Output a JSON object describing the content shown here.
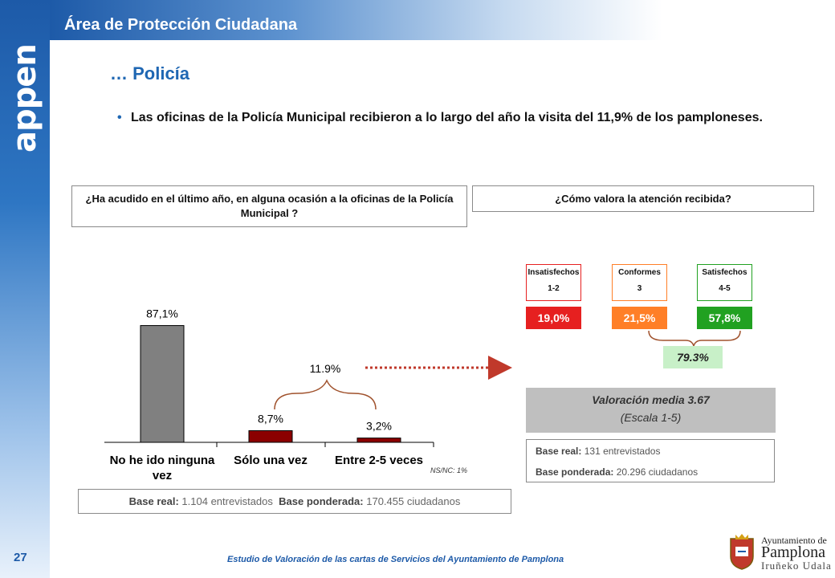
{
  "header": {
    "title": "Área de Protección Ciudadana",
    "brand": "appen"
  },
  "section_title": "… Policía",
  "bullet": "Las oficinas de la Policía Municipal recibieron a lo largo del año la visita del 11,9% de los pamploneses.",
  "question_left": "¿Ha acudido en el último año, en alguna ocasión a la oficinas de la Policía Municipal ?",
  "question_right": "¿Cómo valora la atención recibida?",
  "chart_data": [
    {
      "type": "bar",
      "categories": [
        "No he ido ninguna vez",
        "Sólo una vez",
        "Entre 2-5 veces"
      ],
      "category_lines": [
        [
          "No he ido ninguna",
          "vez"
        ],
        [
          "Sólo una vez"
        ],
        [
          "Entre 2-5 veces"
        ]
      ],
      "values": [
        87.1,
        8.7,
        3.2
      ],
      "data_labels": [
        "87,1%",
        "8,7%",
        "3,2%"
      ],
      "colors": [
        "#808080",
        "#8b0000",
        "#8b0000"
      ],
      "ylim": [
        0,
        100
      ],
      "bracket_label": "11.9%",
      "note": "NS/NC: 1%"
    },
    {
      "type": "table",
      "categories": [
        {
          "name": "Insatisfechos",
          "range": "1-2",
          "value": "19,0%",
          "color": "#e62020"
        },
        {
          "name": "Conformes",
          "range": "3",
          "value": "21,5%",
          "color": "#ff7f27"
        },
        {
          "name": "Satisfechos",
          "range": "4-5",
          "value": "57,8%",
          "color": "#21a121"
        }
      ],
      "sum_label": "79.3%"
    }
  ],
  "valoracion": {
    "line1": "Valoración media 3.67",
    "line2": "(Escala 1-5)"
  },
  "base_right": {
    "real_label": "Base real:",
    "real_value": "131 entrevistados",
    "pond_label": "Base ponderada:",
    "pond_value": "20.296 ciudadanos"
  },
  "base_left": {
    "real_label": "Base real:",
    "real_value": "1.104 entrevistados",
    "pond_label": "Base ponderada:",
    "pond_value": "170.455 ciudadanos"
  },
  "page_number": "27",
  "footer": "Estudio de Valoración de las cartas de Servicios del Ayuntamiento  de Pamplona",
  "logo": {
    "line1": "Ayuntamiento de",
    "line2": "Pamplona",
    "line3": "Iruñeko Udala"
  }
}
